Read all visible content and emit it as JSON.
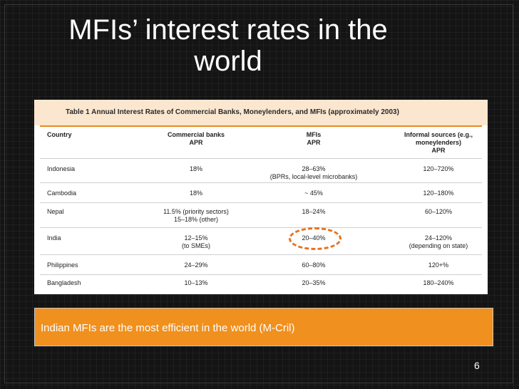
{
  "slide": {
    "title_line1": "MFIs’ interest rates in the",
    "title_line2": "world",
    "caption": "Indian MFIs are the most efficient in the world (M-Cril)",
    "page_number": "6"
  },
  "table": {
    "caption": "Table 1   Annual Interest Rates of Commercial Banks, Moneylenders, and MFIs (approximately 2003)",
    "headers": {
      "country": "Country",
      "commercial_l1": "Commercial banks",
      "commercial_l2": "APR",
      "mfis_l1": "MFIs",
      "mfis_l2": "APR",
      "informal_l1": "Informal sources (e.g.,",
      "informal_l2": "moneylenders)",
      "informal_l3": "APR"
    },
    "rows": [
      {
        "country": "Indonesia",
        "commercial_l1": "18%",
        "commercial_l2": "",
        "mfis_l1": "28–63%",
        "mfis_l2": "(BPRs, local-level microbanks)",
        "informal_l1": "120–720%",
        "informal_l2": ""
      },
      {
        "country": "Cambodia",
        "commercial_l1": "18%",
        "commercial_l2": "",
        "mfis_l1": "~ 45%",
        "mfis_l2": "",
        "informal_l1": "120–180%",
        "informal_l2": ""
      },
      {
        "country": "Nepal",
        "commercial_l1": "11.5% (priority sectors)",
        "commercial_l2": "15–18% (other)",
        "mfis_l1": "18–24%",
        "mfis_l2": "",
        "informal_l1": "60–120%",
        "informal_l2": ""
      },
      {
        "country": "India",
        "commercial_l1": "12–15%",
        "commercial_l2": "(to SMEs)",
        "mfis_l1": "20–40%",
        "mfis_l2": "",
        "informal_l1": "24–120%",
        "informal_l2": "(depending on state)"
      },
      {
        "country": "Philippines",
        "commercial_l1": "24–29%",
        "commercial_l2": "",
        "mfis_l1": "60–80%",
        "mfis_l2": "",
        "informal_l1": "120+%",
        "informal_l2": ""
      },
      {
        "country": "Bangladesh",
        "commercial_l1": "10–13%",
        "commercial_l2": "",
        "mfis_l1": "20–35%",
        "mfis_l2": "",
        "informal_l1": "180–240%",
        "informal_l2": ""
      }
    ]
  },
  "colors": {
    "background": "#141414",
    "accent_orange": "#f0901e",
    "caption_band": "#fbe7cf",
    "highlight_circle": "#e8711d"
  }
}
